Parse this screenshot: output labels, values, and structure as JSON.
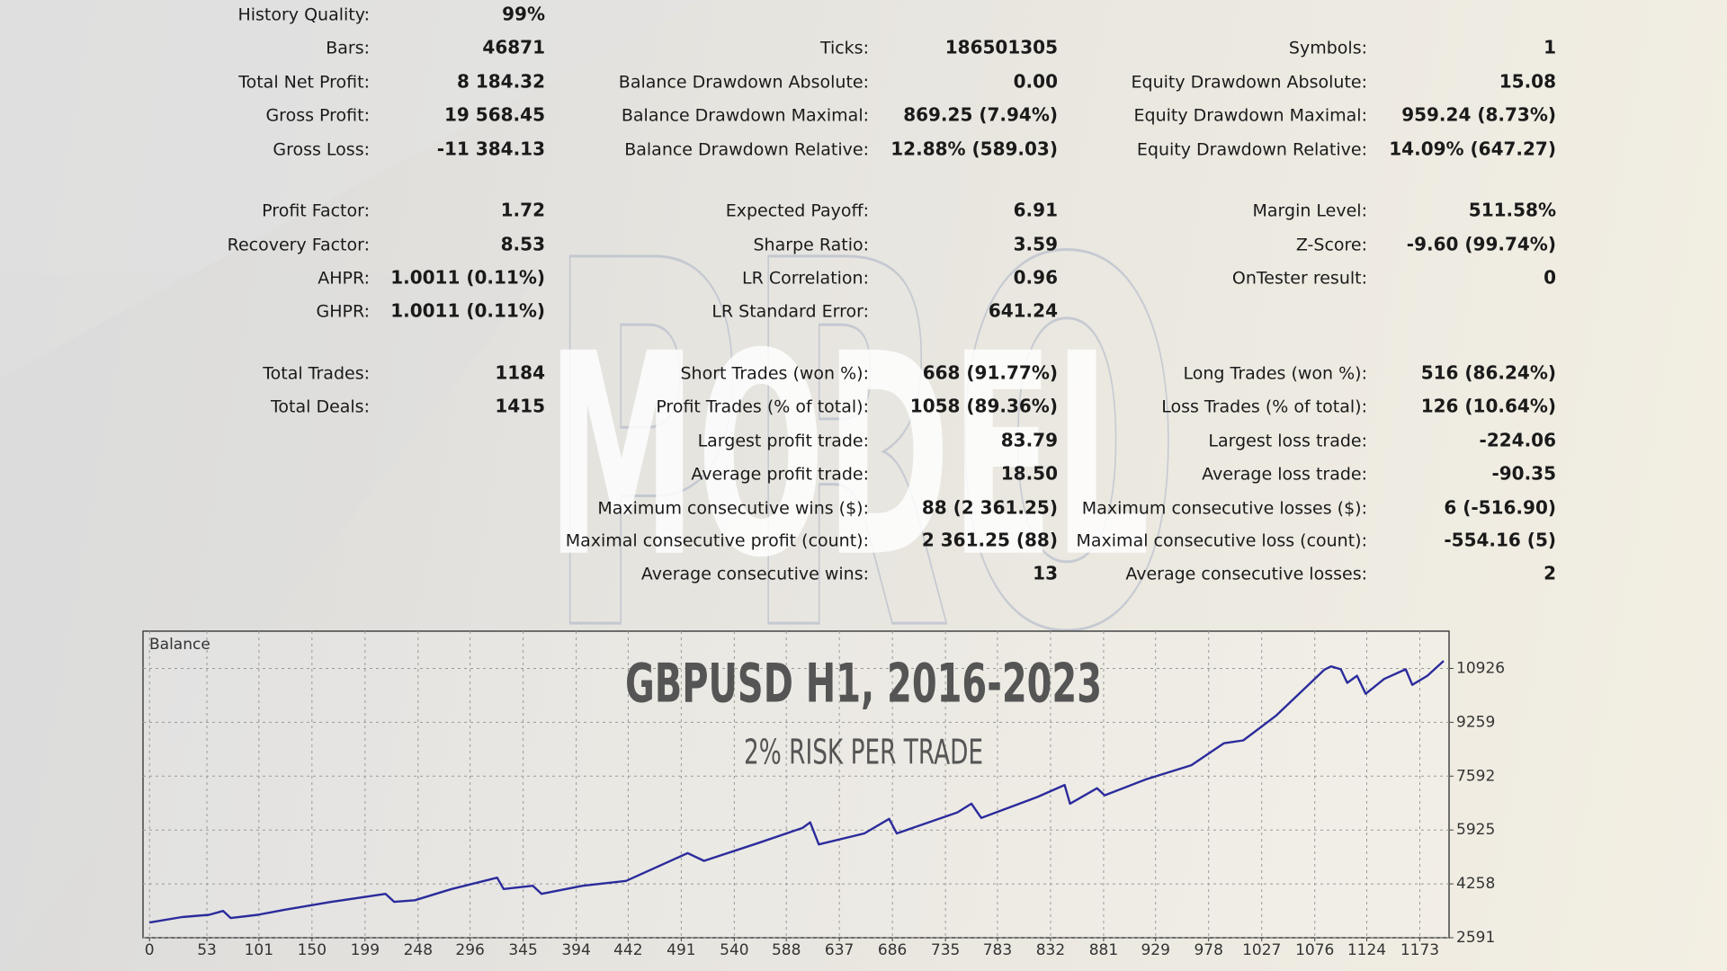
{
  "report": {
    "sections": [
      {
        "rows": [
          [
            {
              "label": "History Quality:",
              "value": "99%"
            }
          ],
          [
            {
              "label": "Bars:",
              "value": "46871"
            },
            {
              "label": "Ticks:",
              "value": "186501305"
            },
            {
              "label": "Symbols:",
              "value": "1"
            }
          ],
          [
            {
              "label": "Total Net Profit:",
              "value": "8 184.32"
            },
            {
              "label": "Balance Drawdown Absolute:",
              "value": "0.00"
            },
            {
              "label": "Equity Drawdown Absolute:",
              "value": "15.08"
            }
          ],
          [
            {
              "label": "Gross Profit:",
              "value": "19 568.45"
            },
            {
              "label": "Balance Drawdown Maximal:",
              "value": "869.25 (7.94%)"
            },
            {
              "label": "Equity Drawdown Maximal:",
              "value": "959.24 (8.73%)"
            }
          ],
          [
            {
              "label": "Gross Loss:",
              "value": "-11 384.13"
            },
            {
              "label": "Balance Drawdown Relative:",
              "value": "12.88% (589.03)"
            },
            {
              "label": "Equity Drawdown Relative:",
              "value": "14.09% (647.27)"
            }
          ]
        ]
      },
      {
        "rows": [
          [
            {
              "label": "Profit Factor:",
              "value": "1.72"
            },
            {
              "label": "Expected Payoff:",
              "value": "6.91"
            },
            {
              "label": "Margin Level:",
              "value": "511.58%"
            }
          ],
          [
            {
              "label": "Recovery Factor:",
              "value": "8.53"
            },
            {
              "label": "Sharpe Ratio:",
              "value": "3.59"
            },
            {
              "label": "Z-Score:",
              "value": "-9.60 (99.74%)"
            }
          ],
          [
            {
              "label": "AHPR:",
              "value": "1.0011 (0.11%)"
            },
            {
              "label": "LR Correlation:",
              "value": "0.96"
            },
            {
              "label": "OnTester result:",
              "value": "0"
            }
          ],
          [
            {
              "label": "GHPR:",
              "value": "1.0011 (0.11%)"
            },
            {
              "label": "LR Standard Error:",
              "value": "641.24"
            }
          ]
        ]
      },
      {
        "rows": [
          [
            {
              "label": "Total Trades:",
              "value": "1184"
            },
            {
              "label": "Short Trades (won %):",
              "value": "668 (91.77%)"
            },
            {
              "label": "Long Trades (won %):",
              "value": "516 (86.24%)"
            }
          ],
          [
            {
              "label": "Total Deals:",
              "value": "1415"
            },
            {
              "label": "Profit Trades (% of total):",
              "value": "1058 (89.36%)"
            },
            {
              "label": "Loss Trades (% of total):",
              "value": "126 (10.64%)"
            }
          ],
          [
            null,
            {
              "label": "Largest profit trade:",
              "value": "83.79"
            },
            {
              "label": "Largest loss trade:",
              "value": "-224.06"
            }
          ],
          [
            null,
            {
              "label": "Average profit trade:",
              "value": "18.50"
            },
            {
              "label": "Average loss trade:",
              "value": "-90.35"
            }
          ],
          [
            null,
            {
              "label": "Maximum consecutive wins ($):",
              "value": "88 (2 361.25)"
            },
            {
              "label": "Maximum consecutive losses ($):",
              "value": "6 (-516.90)"
            }
          ],
          [
            null,
            {
              "label": "Maximal consecutive profit (count):",
              "value": "2 361.25 (88)"
            },
            {
              "label": "Maximal consecutive loss (count):",
              "value": "-554.16 (5)"
            }
          ],
          [
            null,
            {
              "label": "Average consecutive wins:",
              "value": "13"
            },
            {
              "label": "Average consecutive losses:",
              "value": "2"
            }
          ]
        ]
      }
    ]
  },
  "watermark": {
    "word": "MODEL",
    "outline": "PRO"
  },
  "chart_data": {
    "type": "line",
    "title": "GBPUSD H1, 2016-2023",
    "subtitle": "2% RISK PER TRADE",
    "panel_label": "Balance",
    "color": "#2b2b9c",
    "grid": true,
    "x": [
      0,
      30,
      55,
      68,
      75,
      100,
      124,
      168,
      218,
      226,
      245,
      279,
      321,
      327,
      354,
      362,
      400,
      440,
      497,
      512,
      562,
      603,
      610,
      618,
      660,
      683,
      690,
      746,
      759,
      768,
      820,
      845,
      850,
      875,
      882,
      920,
      962,
      992,
      1010,
      1040,
      1085,
      1091,
      1100,
      1106,
      1115,
      1123,
      1140,
      1160,
      1166,
      1180,
      1195
    ],
    "values": [
      3060,
      3230,
      3300,
      3420,
      3200,
      3300,
      3450,
      3700,
      3950,
      3700,
      3750,
      4100,
      4450,
      4100,
      4200,
      3950,
      4200,
      4350,
      5210,
      4970,
      5520,
      5990,
      6160,
      5480,
      5820,
      6270,
      5820,
      6470,
      6740,
      6300,
      6950,
      7320,
      6740,
      7220,
      7000,
      7490,
      7930,
      8610,
      8700,
      9460,
      10890,
      10990,
      10900,
      10480,
      10700,
      10140,
      10600,
      10900,
      10420,
      10700,
      11160
    ],
    "xlim": [
      -6,
      1200
    ],
    "ylim": [
      2591,
      12080
    ],
    "xticks": [
      0,
      53,
      101,
      150,
      199,
      248,
      296,
      345,
      394,
      442,
      491,
      540,
      588,
      637,
      686,
      735,
      783,
      832,
      881,
      929,
      978,
      1027,
      1076,
      1124,
      1173
    ],
    "yticks": [
      2591,
      4258,
      5925,
      7592,
      9259,
      10926
    ]
  }
}
